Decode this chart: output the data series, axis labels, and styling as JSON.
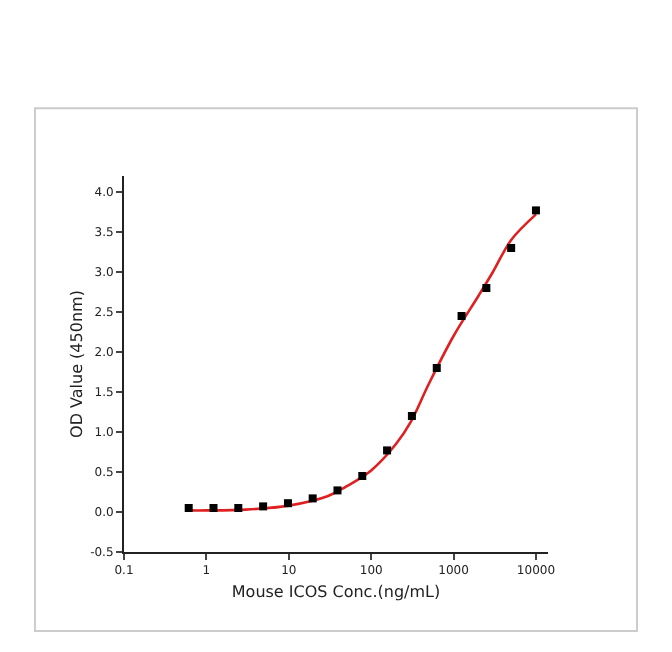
{
  "chart_data": {
    "type": "scatter",
    "xlabel": "Mouse ICOS Conc.(ng/mL)",
    "ylabel": "OD Value (450nm)",
    "log": "x",
    "xlim": [
      0.1,
      14000
    ],
    "ylim": [
      -0.5,
      4.2
    ],
    "xticks": [
      0.1,
      1,
      10,
      100,
      1000,
      10000
    ],
    "yticks": [
      {
        "value": -0.5,
        "label": "-0.5"
      },
      {
        "value": 0,
        "label": "0.0"
      },
      {
        "value": 0.5,
        "label": "0.5"
      },
      {
        "value": 1,
        "label": "1.0"
      },
      {
        "value": 1.5,
        "label": "1.5"
      },
      {
        "value": 2,
        "label": "2.0"
      },
      {
        "value": 2.5,
        "label": "2.5"
      },
      {
        "value": 3,
        "label": "3.0"
      },
      {
        "value": 3.5,
        "label": "3.5"
      },
      {
        "value": 4,
        "label": "4.0"
      }
    ],
    "marker": "square",
    "series": [
      {
        "type": "line",
        "color": "#e02020",
        "marker": "none",
        "x": [
          0.61,
          1,
          3,
          10,
          30,
          50,
          100,
          200,
          300,
          500,
          1000,
          2000,
          3000,
          5000,
          10000
        ],
        "values": [
          0.02,
          0.02,
          0.03,
          0.08,
          0.2,
          0.32,
          0.52,
          0.85,
          1.12,
          1.6,
          2.2,
          2.7,
          3.0,
          3.4,
          3.72
        ]
      },
      {
        "color": "#000000",
        "x": [
          0.61,
          1.22,
          2.44,
          4.88,
          9.77,
          19.5,
          39,
          78,
          156,
          312,
          625,
          1250,
          2500,
          5000,
          10000
        ],
        "values": [
          0.05,
          0.05,
          0.05,
          0.07,
          0.11,
          0.17,
          0.27,
          0.45,
          0.77,
          1.2,
          1.8,
          2.45,
          2.8,
          3.3,
          3.77
        ]
      }
    ]
  }
}
